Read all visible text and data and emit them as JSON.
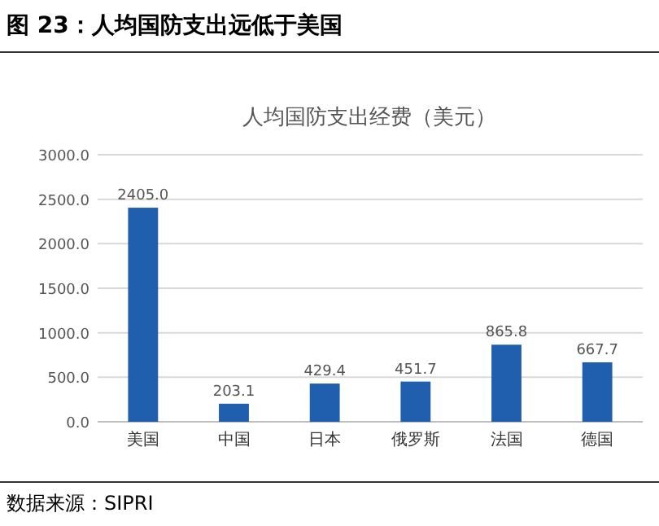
{
  "chart_data": {
    "type": "bar",
    "title": "图 23：人均国防支出远低于美国",
    "subtitle": "人均国防支出经费（美元）",
    "categories": [
      "美国",
      "中国",
      "日本",
      "俄罗斯",
      "法国",
      "德国"
    ],
    "values": [
      2405.0,
      203.1,
      429.4,
      451.7,
      865.8,
      667.7
    ],
    "value_labels": [
      "2405.0",
      "203.1",
      "429.4",
      "451.7",
      "865.8",
      "667.7"
    ],
    "color": "#1f5fad",
    "ylim": [
      0,
      3000
    ],
    "yticks": [
      {
        "value": 0,
        "label": "0.0"
      },
      {
        "value": 500,
        "label": "500.0"
      },
      {
        "value": 1000,
        "label": "1000.0"
      },
      {
        "value": 1500,
        "label": "1500.0"
      },
      {
        "value": 2000,
        "label": "2000.0"
      },
      {
        "value": 2500,
        "label": "2500.0"
      },
      {
        "value": 3000,
        "label": "3000.0"
      }
    ],
    "grid": "y",
    "annotations": [
      "数据来源：SIPRI"
    ]
  }
}
